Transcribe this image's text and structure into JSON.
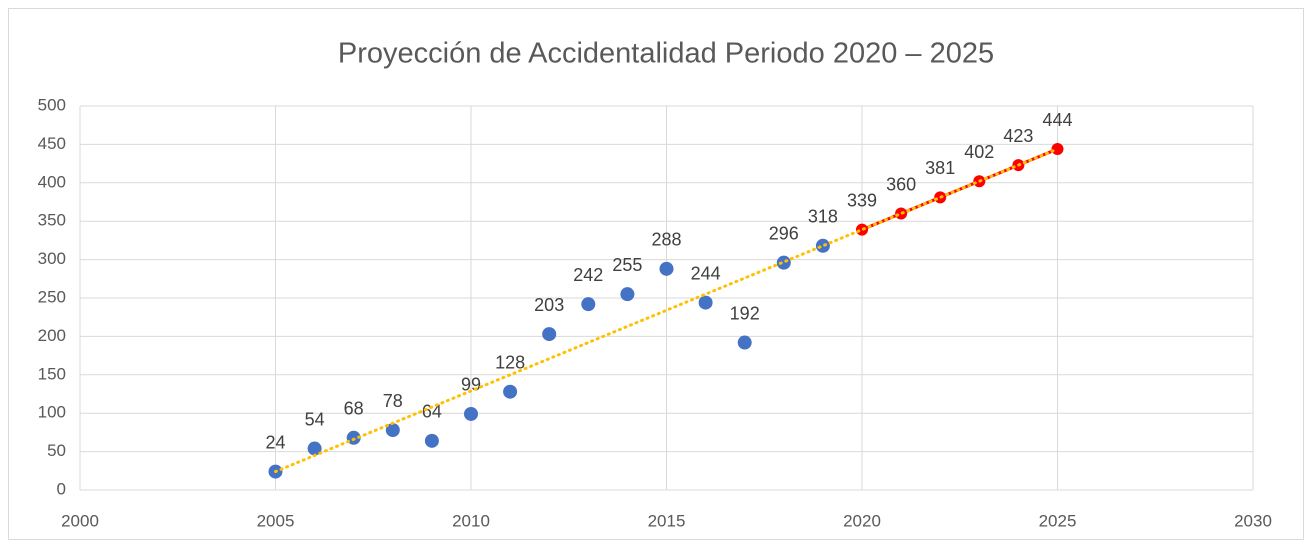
{
  "chart_data": {
    "type": "scatter",
    "title": "Proyección de Accidentalidad Periodo 2020 – 2025",
    "xlim": [
      2000,
      2030
    ],
    "xticks": [
      2000,
      2005,
      2010,
      2015,
      2020,
      2025,
      2030
    ],
    "ylim": [
      0,
      500
    ],
    "yticks": [
      0,
      50,
      100,
      150,
      200,
      250,
      300,
      350,
      400,
      450,
      500
    ],
    "grid": true,
    "series": [
      {
        "color": "#4472c4",
        "line": false,
        "x": [
          2005,
          2006,
          2007,
          2008,
          2009,
          2010,
          2011,
          2012,
          2013,
          2014,
          2015,
          2016,
          2017,
          2018,
          2019
        ],
        "values": [
          24,
          54,
          68,
          78,
          64,
          99,
          128,
          203,
          242,
          255,
          288,
          244,
          192,
          296,
          318
        ]
      },
      {
        "color": "#ff0000",
        "line": true,
        "x": [
          2020,
          2021,
          2022,
          2023,
          2024,
          2025
        ],
        "values": [
          339,
          360,
          381,
          402,
          423,
          444
        ]
      }
    ],
    "trendline": {
      "color": "#ffc000",
      "x": [
        2005,
        2025
      ],
      "values": [
        24,
        444
      ]
    }
  }
}
